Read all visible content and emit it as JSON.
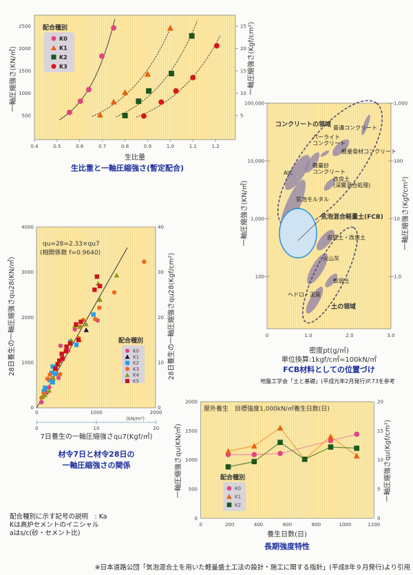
{
  "chart_data": [
    {
      "id": "c1",
      "type": "scatter",
      "title": "生比重と一軸圧縮強さ(暫定配合)",
      "xlabel": "生比量",
      "ylabel": "一軸圧縮強さ(KN/㎡)",
      "ylabel_right": "一軸圧縮強さ(Kgf/cm²)",
      "xlim": [
        0.4,
        1.3
      ],
      "ylim": [
        0,
        2750
      ],
      "xticks": [
        "0.4",
        "0.5",
        "0.6",
        "0.7",
        "0.8",
        "0.9",
        "1.0",
        "1.1",
        "1.2"
      ],
      "yticks": [
        "500",
        "1000",
        "1500",
        "2000",
        "2500"
      ],
      "yticks_right": [
        "5",
        "10",
        "15",
        "20",
        "25"
      ],
      "legend_title": "配合種別",
      "legend_placement": "top-left",
      "series": [
        {
          "name": "K0",
          "marker": "circle",
          "color": "#e0457f",
          "fit": "solid",
          "fit_range": [
            0.51,
            0.755
          ],
          "points": [
            [
              0.555,
              570
            ],
            [
              0.603,
              820
            ],
            [
              0.64,
              1080
            ],
            [
              0.698,
              1830
            ],
            [
              0.75,
              2460
            ]
          ]
        },
        {
          "name": "K1",
          "marker": "triangle",
          "color": "#e8600f",
          "fit": "dashed",
          "fit_range": [
            0.655,
            1.0
          ],
          "points": [
            [
              0.69,
              520
            ],
            [
              0.75,
              810
            ],
            [
              0.8,
              1020
            ],
            [
              0.9,
              1430
            ],
            [
              1.0,
              2460
            ]
          ]
        },
        {
          "name": "K2",
          "marker": "square",
          "color": "#1d561d",
          "fit": "dashed",
          "fit_range": [
            0.76,
            1.12
          ],
          "points": [
            [
              0.8,
              500
            ],
            [
              0.86,
              820
            ],
            [
              0.905,
              1050
            ],
            [
              1.005,
              1440
            ],
            [
              1.095,
              2280
            ]
          ]
        },
        {
          "name": "K3",
          "marker": "circle",
          "color": "#d9161c",
          "fit": "dashed",
          "fit_range": [
            0.85,
            1.22
          ],
          "points": [
            [
              0.883,
              490
            ],
            [
              0.96,
              800
            ],
            [
              1.025,
              1050
            ],
            [
              1.1,
              1350
            ],
            [
              1.205,
              2060
            ]
          ]
        }
      ]
    },
    {
      "id": "c2",
      "type": "scatter",
      "title": "FCB材料としての位置づけ",
      "xlabel": "密度pt(g/㎥)",
      "unit_note": "単位換算:1kgf/c㎡=100kN/㎡",
      "reference": "地盤工学会「土と基礎」(平成元年2月発行)P.73を参考",
      "ylabel": "一軸圧縮強さ(KN/㎡)",
      "ylabel_right": "一軸圧縮強さ(Kgf/cm²)",
      "xlim": [
        0,
        3.0
      ],
      "ylim_log": [
        12.6,
        100000
      ],
      "xticks": [
        "0",
        "1.0",
        "2.0",
        "3.0"
      ],
      "yticks": [
        "100,000",
        "10,000",
        "1,000",
        "100"
      ],
      "yticks_right": [
        "1,000",
        "100",
        "10",
        "1.0"
      ],
      "regions": [
        {
          "label": "コンクリートの領域",
          "density": [
            0.4,
            2.65
          ],
          "strength": [
            750,
            100000
          ],
          "label_at": [
            0.2,
            40000
          ]
        },
        {
          "label": "土の領域",
          "density": [
            0.95,
            2.1
          ],
          "strength": [
            16,
            700
          ],
          "label_at": [
            1.55,
            28
          ]
        }
      ],
      "fcb": {
        "label": "気泡混合軽量土(FCB)",
        "density": [
          0.3,
          1.2
        ],
        "strength": [
          210,
          1500
        ],
        "label_at": [
          1.3,
          1000
        ]
      },
      "materials": [
        {
          "label": "普通コンクリート",
          "density": [
            2.3,
            2.48
          ],
          "strength": [
            28000,
            63000
          ],
          "label_at": [
            1.6,
            35000
          ]
        },
        {
          "label": "パーライト\nコンクリート",
          "density": [
            1.3,
            1.5
          ],
          "strength": [
            12000,
            15000
          ],
          "label_at": [
            1.1,
            24000
          ]
        },
        {
          "label": "軽量骨材コンクリート",
          "density": [
            1.6,
            1.97
          ],
          "strength": [
            12500,
            23000
          ],
          "label_at": [
            1.8,
            13500
          ]
        },
        {
          "label": "AlC",
          "density": [
            0.47,
            1.0
          ],
          "strength": [
            3200,
            12500
          ],
          "label_at": [
            0.4,
            5800
          ]
        },
        {
          "label": "軽量砂\nコンクリート",
          "density": [
            0.94,
            1.25
          ],
          "strength": [
            6300,
            14000
          ],
          "label_at": [
            1.1,
            7700
          ]
        },
        {
          "label": "改良土\n(深層混合処理)",
          "density": [
            1.39,
            1.64
          ],
          "strength": [
            3100,
            4900
          ],
          "label_at": [
            1.6,
            4500
          ]
        },
        {
          "label": "気泡モルタル",
          "density": [
            0.36,
            0.89
          ],
          "strength": [
            600,
            4700
          ],
          "label_at": [
            0.7,
            2000
          ]
        },
        {
          "label": "良質土・改良土",
          "density": [
            1.22,
            1.61
          ],
          "strength": [
            290,
            630
          ],
          "label_at": [
            1.45,
            440
          ]
        },
        {
          "label": "火山灰",
          "density": [
            1.0,
            1.44
          ],
          "strength": [
            75,
            250
          ],
          "label_at": [
            1.35,
            190
          ]
        },
        {
          "label": "軟弱土",
          "density": [
            1.42,
            1.69
          ],
          "strength": [
            66,
            110
          ],
          "label_at": [
            1.6,
            78
          ]
        },
        {
          "label": "ヘドロ・泥炭",
          "density": [
            0.97,
            1.33
          ],
          "strength": [
            23,
            66
          ],
          "label_at": [
            0.5,
            45
          ]
        }
      ]
    },
    {
      "id": "c3",
      "type": "scatter",
      "title_lines": [
        "材令7日と材令28日の",
        "一軸圧縮強さの関係"
      ],
      "equation": "qu=28=2.33×qu7",
      "correlation": "(相関係数 f=0.9640)",
      "xlabel": "7日養生の一軸圧縮強さqu7(Kgf/㎡)",
      "x_unit": "(kN/m²)",
      "ylabel": "28日養生の一軸圧縮強さqu28(KN/㎡)",
      "ylabel_right": "28日養生の一軸圧縮強さqu28(Kgf/cm²)",
      "xlim": [
        0,
        2000
      ],
      "ylim": [
        0,
        4000
      ],
      "xticks": [
        "0",
        "1000",
        "2000"
      ],
      "xticks_secondary": [
        "0",
        "10",
        "20"
      ],
      "yticks": [
        "0",
        "1000",
        "2000",
        "3000",
        "4000"
      ],
      "yticks_right": [
        "0",
        "10",
        "20",
        "30",
        "40"
      ],
      "regression": {
        "slope": 2.33,
        "x_range": [
          0,
          1520
        ]
      },
      "legend_title": "配合種別",
      "legend_placement": "bottom-right",
      "series": [
        {
          "name": "K0",
          "marker": "circle",
          "color": "#e0457f",
          "points": [
            [
              80,
              120
            ],
            [
              170,
              330
            ],
            [
              210,
              450
            ],
            [
              365,
              660
            ],
            [
              400,
              1370
            ],
            [
              440,
              1070
            ],
            [
              530,
              1260
            ],
            [
              640,
              1730
            ],
            [
              1020,
              1930
            ]
          ]
        },
        {
          "name": "K1",
          "marker": "triangle",
          "color": "#1a1a3a",
          "points": [
            [
              830,
              1720
            ]
          ]
        },
        {
          "name": "K2",
          "marker": "square",
          "color": "#2a9be8",
          "points": [
            [
              120,
              360
            ],
            [
              140,
              440
            ],
            [
              220,
              610
            ],
            [
              250,
              770
            ],
            [
              270,
              910
            ],
            [
              320,
              890
            ],
            [
              320,
              750
            ],
            [
              270,
              560
            ],
            [
              565,
              1460
            ],
            [
              665,
              1390
            ],
            [
              950,
              2060
            ]
          ]
        },
        {
          "name": "K3",
          "marker": "circle",
          "color": "#ee6a1c",
          "points": [
            [
              80,
              220
            ],
            [
              120,
              310
            ],
            [
              180,
              640
            ],
            [
              220,
              730
            ],
            [
              270,
              650
            ],
            [
              390,
              740
            ],
            [
              700,
              1540
            ],
            [
              730,
              1790
            ],
            [
              780,
              1940
            ],
            [
              980,
              1960
            ],
            [
              1050,
              2210
            ],
            [
              1300,
              2550
            ],
            [
              1800,
              3230
            ]
          ]
        },
        {
          "name": "K4",
          "marker": "triangle",
          "color": "#8a9a1e",
          "points": [
            [
              100,
              240
            ],
            [
              140,
              280
            ],
            [
              210,
              380
            ],
            [
              280,
              660
            ],
            [
              580,
              1490
            ],
            [
              640,
              1810
            ],
            [
              720,
              1500
            ],
            [
              720,
              1790
            ],
            [
              830,
              1850
            ],
            [
              1060,
              2390
            ],
            [
              1030,
              2750
            ],
            [
              1340,
              2930
            ]
          ]
        },
        {
          "name": "K5",
          "marker": "square",
          "color": "#c8141e",
          "points": [
            [
              310,
              860
            ],
            [
              350,
              960
            ],
            [
              380,
              1040
            ],
            [
              420,
              1190
            ],
            [
              430,
              1090
            ],
            [
              490,
              1250
            ],
            [
              500,
              1350
            ],
            [
              560,
              1420
            ],
            [
              660,
              1840
            ],
            [
              700,
              1500
            ],
            [
              740,
              1900
            ],
            [
              970,
              2610
            ],
            [
              1010,
              2900
            ],
            [
              1060,
              2690
            ]
          ]
        }
      ]
    },
    {
      "id": "c4",
      "type": "line",
      "header": "屋外養生　目標強度1,000kN/㎡養生日数(日)",
      "title": "長期強度特性",
      "xlabel": "養生日数(日)",
      "ylabel": "一軸圧縮強さqu(KN/㎡)",
      "ylabel_right": "一軸圧縮強さqu(Kgf/cm²)",
      "xlim": [
        0,
        1200
      ],
      "ylim": [
        0,
        2000
      ],
      "xticks": [
        "0",
        "200",
        "400",
        "600",
        "800",
        "1000",
        "1200"
      ],
      "yticks": [
        "0",
        "500",
        "1000",
        "1500",
        "2000"
      ],
      "yticks_right": [
        "0",
        "5",
        "10",
        "15",
        "20"
      ],
      "legend_title": "配合種別",
      "legend_placement": "bottom-left",
      "series": [
        {
          "name": "K0",
          "marker": "circle",
          "color": "#e0457f",
          "line": "#f08aa8",
          "points": [
            [
              190,
              1090
            ],
            [
              370,
              1090
            ],
            [
              550,
              1110
            ],
            [
              900,
              1330
            ],
            [
              1080,
              1440
            ]
          ]
        },
        {
          "name": "K1",
          "marker": "triangle",
          "color": "#e8600f",
          "line": "#f0a040",
          "points": [
            [
              190,
              1150
            ],
            [
              370,
              1240
            ],
            [
              550,
              1550
            ],
            [
              720,
              1010
            ],
            [
              900,
              1400
            ],
            [
              1080,
              1070
            ]
          ]
        },
        {
          "name": "K2",
          "marker": "square",
          "color": "#1d561d",
          "line": "#5a8a3a",
          "points": [
            [
              190,
              880
            ],
            [
              370,
              970
            ],
            [
              550,
              1300
            ],
            [
              720,
              1010
            ],
            [
              900,
              1220
            ],
            [
              1080,
              1200
            ]
          ]
        }
      ]
    }
  ],
  "notes": [
    "配合種別に示す記号の説明　: Ka",
    "Kは高炉セメントのイニシャル",
    "aはs/c(砂・セメント比)"
  ],
  "footer": "※日本道路公団「気泡混合土を用いた軽量盛土工法の設計・施工に関する指針」(平成8年９月発行)より引用",
  "colors": {
    "plot_bg": "#fbe9a8",
    "title": "#1c2f9e",
    "fcb_fill": "#cfe3f3",
    "fcb_stroke": "#2a8ee0",
    "blob": "#8e80a8"
  }
}
